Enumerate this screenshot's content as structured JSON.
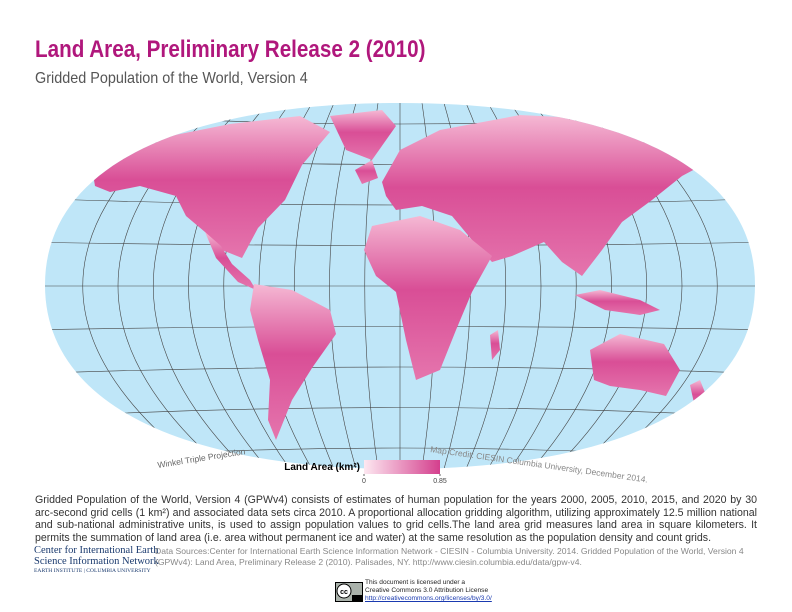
{
  "header": {
    "title": "Land Area, Preliminary Release 2 (2010)",
    "subtitle": "Gridded Population of the World, Version 4"
  },
  "map": {
    "projection_label": "Winkel Triple Projection",
    "credit": "Map Credit: CIESIN Columbia University, December 2014.",
    "legend": {
      "title": "Land Area (km²)",
      "min": 0,
      "max": 0.85,
      "colors": [
        "#fde8f1",
        "#d43f8d"
      ]
    }
  },
  "description": "Gridded Population of the World, Version 4 (GPWv4) consists of estimates of human population for the years 2000, 2005, 2010, 2015, and 2020 by 30 arc-second grid cells (1 km²) and associated data sets circa 2010. A proportional allocation gridding algorithm, utilizing approximately 12.5 million national and sub-national administrative units, is used to assign population values to grid cells.The land area grid measures land area in square kilometers. It permits the summation of land area (i.e. area without permanent ice and water) at the same resolution as the population density and count grids.",
  "org": [
    "Center for International Earth",
    "Science Information Network",
    "EARTH INSTITUTE | COLUMBIA UNIVERSITY"
  ],
  "sources": "Data Sources:Center for International Earth Science Information Network - CIESIN - Columbia University. 2014. Gridded Population of the World, Version 4 (GPWv4): Land Area, Preliminary Release 2 (2010). Palisades, NY. http://www.ciesin.columbia.edu/data/gpw-v4.",
  "license": [
    "This document is licensed under a",
    "Creative Commons 3.0 Attribution License",
    "http://creativecommons.org/licenses/by/3.0/"
  ]
}
